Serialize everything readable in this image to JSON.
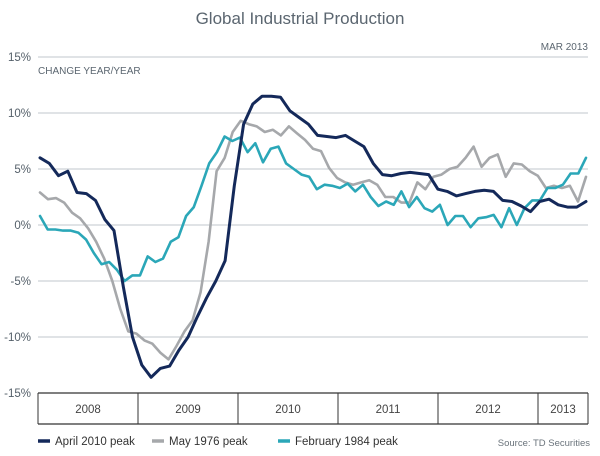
{
  "chart_data": {
    "type": "line",
    "title": "Global Industrial Production",
    "date_label": "MAR 2013",
    "ylabel": "CHANGE YEAR/YEAR",
    "ylim": [
      -15,
      15
    ],
    "yticks": [
      15,
      10,
      5,
      0,
      -5,
      -10,
      -15
    ],
    "ytick_labels": [
      "15%",
      "10%",
      "5%",
      "0%",
      "-5%",
      "-10%",
      "-15%"
    ],
    "x_categories": [
      "2008",
      "2009",
      "2010",
      "2011",
      "2012",
      "2013"
    ],
    "x_start_index": 0,
    "x_end_index": 65,
    "grid": "horizontal",
    "legend_position": "bottom",
    "source": "Source: TD Securities",
    "series": [
      {
        "name": "April 2010 peak",
        "color": "#14295a",
        "x_start": 0,
        "values": [
          6.0,
          5.5,
          4.4,
          4.8,
          2.9,
          2.8,
          2.2,
          0.5,
          -0.5,
          -5.5,
          -10.0,
          -12.5,
          -13.6,
          -12.8,
          -12.6,
          -11.2,
          -10.0,
          -8.2,
          -6.5,
          -5.0,
          -3.2,
          3.5,
          9.0,
          10.8,
          11.5,
          11.5,
          11.4,
          10.2,
          9.6,
          9.0,
          8.0,
          7.9,
          7.8,
          8.0,
          7.5,
          7.0,
          5.5,
          4.5,
          4.4,
          4.6,
          4.7,
          4.6,
          4.5,
          3.2,
          3.0,
          2.6,
          2.8,
          3.0,
          3.1,
          3.0,
          2.2,
          2.1,
          1.7,
          1.2,
          2.1,
          2.3,
          1.8,
          1.6,
          1.6,
          2.1
        ]
      },
      {
        "name": "May 1976 peak",
        "color": "#a6a8ab",
        "x_start": 0,
        "values": [
          2.9,
          2.3,
          2.4,
          2.0,
          1.1,
          0.6,
          -0.3,
          -1.5,
          -3.0,
          -5.0,
          -7.5,
          -9.5,
          -9.7,
          -10.3,
          -10.6,
          -11.4,
          -12.0,
          -10.8,
          -9.5,
          -8.5,
          -6.0,
          -1.5,
          4.8,
          6.0,
          8.3,
          9.3,
          9.0,
          8.8,
          8.3,
          8.5,
          8.0,
          8.8,
          8.2,
          7.6,
          6.8,
          6.6,
          5.1,
          4.2,
          3.8,
          3.6,
          3.8,
          4.0,
          3.6,
          2.5,
          2.5,
          2.0,
          2.0,
          3.8,
          3.2,
          4.3,
          4.5,
          5.0,
          5.2,
          6.0,
          7.0,
          5.2,
          6.0,
          6.3,
          4.3,
          5.5,
          5.4,
          4.8,
          4.4,
          3.3,
          3.5,
          3.3,
          3.5,
          2.1,
          4.3
        ]
      },
      {
        "name": "February 1984 peak",
        "color": "#2ba7b8",
        "x_start": 0,
        "values": [
          0.8,
          -0.4,
          -0.4,
          -0.5,
          -0.5,
          -0.7,
          -1.3,
          -2.5,
          -3.5,
          -3.3,
          -4.0,
          -5.0,
          -4.5,
          -4.5,
          -2.8,
          -3.3,
          -3.0,
          -1.5,
          -1.1,
          0.8,
          1.6,
          3.5,
          5.5,
          6.5,
          7.9,
          7.5,
          7.8,
          6.5,
          7.3,
          5.6,
          6.8,
          7.0,
          5.5,
          5.0,
          4.5,
          4.3,
          3.2,
          3.6,
          3.5,
          3.3,
          3.7,
          3.0,
          3.6,
          2.5,
          1.7,
          2.1,
          1.8,
          3.0,
          1.6,
          2.5,
          1.5,
          1.2,
          1.8,
          0.0,
          0.8,
          0.8,
          -0.2,
          0.6,
          0.7,
          0.9,
          -0.2,
          1.5,
          0.0,
          1.5,
          2.2,
          2.2,
          3.3,
          3.3,
          3.6,
          4.6,
          4.6,
          6.0
        ]
      }
    ]
  }
}
